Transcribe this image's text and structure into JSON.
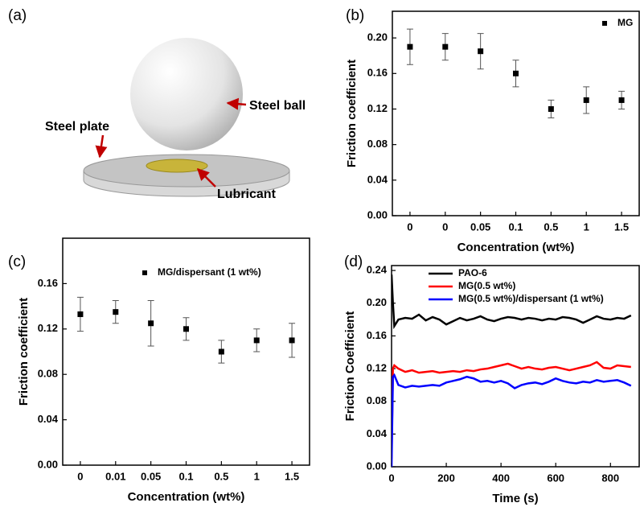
{
  "diagram": {
    "panel_label": "(a)",
    "labels": [
      "Steel ball",
      "Steel plate",
      "Lubricant"
    ]
  },
  "chart_data": [
    {
      "type": "errorbar",
      "panel_label": "(b)",
      "xlabel": "Concentration (wt%)",
      "ylabel": "Friction coefficient",
      "categories": [
        "0",
        "0",
        "0.05",
        "0.1",
        "0.5",
        "1",
        "1.5"
      ],
      "series": [
        {
          "name": "MG",
          "color": "#000000",
          "values": [
            0.19,
            0.19,
            0.185,
            0.16,
            0.12,
            0.13,
            0.13
          ],
          "errors": [
            0.02,
            0.015,
            0.02,
            0.015,
            0.01,
            0.015,
            0.01
          ]
        }
      ],
      "ylim": [
        0,
        0.23
      ],
      "yticks": [
        {
          "value": 0,
          "label": "0.00"
        },
        {
          "value": 0.04,
          "label": "0.04"
        },
        {
          "value": 0.08,
          "label": "0.08"
        },
        {
          "value": 0.12,
          "label": "0.12"
        },
        {
          "value": 0.16,
          "label": "0.16"
        },
        {
          "value": 0.2,
          "label": "0.20"
        }
      ],
      "legend": "top-right"
    },
    {
      "type": "errorbar",
      "panel_label": "(c)",
      "xlabel": "Concentration (wt%)",
      "ylabel": "Friction coefficient",
      "categories": [
        "0",
        "0.01",
        "0.05",
        "0.1",
        "0.5",
        "1",
        "1.5"
      ],
      "series": [
        {
          "name": "MG/dispersant (1 wt%)",
          "color": "#000000",
          "values": [
            0.133,
            0.135,
            0.125,
            0.12,
            0.1,
            0.11,
            0.11
          ],
          "errors": [
            0.015,
            0.01,
            0.02,
            0.01,
            0.01,
            0.01,
            0.015
          ]
        }
      ],
      "ylim": [
        0,
        0.2
      ],
      "yticks": [
        {
          "value": 0,
          "label": "0.00"
        },
        {
          "value": 0.04,
          "label": "0.04"
        },
        {
          "value": 0.08,
          "label": "0.08"
        },
        {
          "value": 0.12,
          "label": "0.12"
        },
        {
          "value": 0.16,
          "label": "0.16"
        }
      ],
      "legend": "top-left"
    },
    {
      "type": "line",
      "panel_label": "(d)",
      "xlabel": "Time (s)",
      "ylabel": "Friction Coefficient",
      "x": [
        0,
        5,
        10,
        25,
        50,
        75,
        100,
        125,
        150,
        175,
        200,
        225,
        250,
        275,
        300,
        325,
        350,
        375,
        400,
        425,
        450,
        475,
        500,
        525,
        550,
        575,
        600,
        625,
        650,
        675,
        700,
        725,
        750,
        775,
        800,
        825,
        850,
        875
      ],
      "series": [
        {
          "name": "PAO-6",
          "color": "#000000",
          "values": [
            0.235,
            0.2,
            0.172,
            0.18,
            0.182,
            0.181,
            0.186,
            0.179,
            0.183,
            0.18,
            0.174,
            0.178,
            0.182,
            0.179,
            0.181,
            0.184,
            0.18,
            0.178,
            0.181,
            0.183,
            0.182,
            0.18,
            0.182,
            0.181,
            0.179,
            0.181,
            0.18,
            0.183,
            0.182,
            0.18,
            0.176,
            0.18,
            0.184,
            0.181,
            0.18,
            0.182,
            0.181,
            0.185
          ]
        },
        {
          "name": "MG(0.5 wt%)",
          "color": "#ff0000",
          "values": [
            0.01,
            0.12,
            0.124,
            0.12,
            0.116,
            0.118,
            0.115,
            0.116,
            0.117,
            0.115,
            0.116,
            0.117,
            0.116,
            0.118,
            0.117,
            0.119,
            0.12,
            0.122,
            0.124,
            0.126,
            0.123,
            0.12,
            0.122,
            0.12,
            0.119,
            0.121,
            0.122,
            0.12,
            0.118,
            0.12,
            0.122,
            0.124,
            0.128,
            0.121,
            0.12,
            0.124,
            0.123,
            0.122
          ]
        },
        {
          "name": "MG(0.5 wt%)/dispersant (1 wt%)",
          "color": "#0000ff",
          "values": [
            0,
            0.11,
            0.112,
            0.1,
            0.097,
            0.099,
            0.098,
            0.099,
            0.1,
            0.099,
            0.103,
            0.105,
            0.107,
            0.11,
            0.108,
            0.104,
            0.105,
            0.103,
            0.105,
            0.102,
            0.096,
            0.1,
            0.102,
            0.103,
            0.101,
            0.104,
            0.108,
            0.105,
            0.103,
            0.102,
            0.104,
            0.103,
            0.106,
            0.104,
            0.105,
            0.106,
            0.103,
            0.099
          ]
        }
      ],
      "xlim": [
        0,
        905
      ],
      "xticks": [
        0,
        200,
        400,
        600,
        800
      ],
      "ylim": [
        0,
        0.246
      ],
      "yticks": [
        {
          "value": 0,
          "label": "0.00"
        },
        {
          "value": 0.04,
          "label": "0.04"
        },
        {
          "value": 0.08,
          "label": "0.08"
        },
        {
          "value": 0.12,
          "label": "0.12"
        },
        {
          "value": 0.16,
          "label": "0.16"
        },
        {
          "value": 0.2,
          "label": "0.20"
        },
        {
          "value": 0.24,
          "label": "0.24"
        }
      ],
      "legend": "top-left"
    }
  ]
}
